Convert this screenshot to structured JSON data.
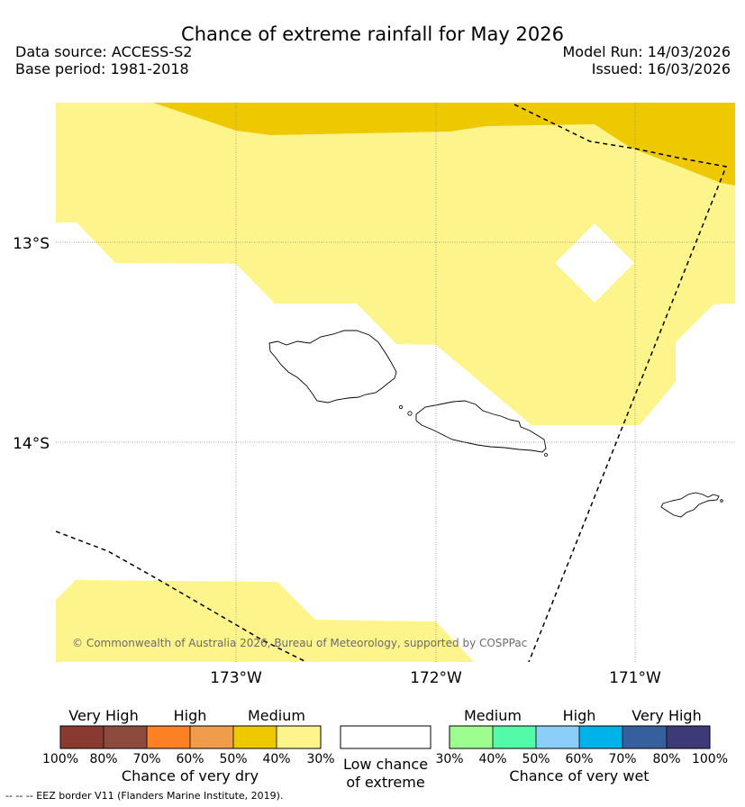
{
  "header": {
    "title": "Chance of extreme rainfall for May 2026",
    "data_source": "Data source: ACCESS-S2",
    "base_period": "Base period: 1981-2018",
    "model_run": "Model Run: 14/03/2026",
    "issued": "Issued: 16/03/2026"
  },
  "map": {
    "lat_labels": [
      "13°S",
      "14°S"
    ],
    "lon_labels": [
      "173°W",
      "172°W",
      "171°W"
    ],
    "copyright": "© Commonwealth of Australia 2026, Bureau of Meteorology, supported by COSPPac",
    "colors": {
      "medium_dry": "#fdf58c",
      "high_dry": "#eec800",
      "low": "#ffffff"
    }
  },
  "legend": {
    "dry": {
      "groups": [
        "Very High",
        "High",
        "Medium"
      ],
      "ticks": [
        "100%",
        "80%",
        "70%",
        "60%",
        "50%",
        "40%",
        "30%"
      ],
      "colors": [
        "#8b3a32",
        "#8c4b3c",
        "#fd8024",
        "#ef9d4b",
        "#eec800",
        "#fdf58c"
      ],
      "caption": "Chance of very dry"
    },
    "low": {
      "caption_line1": "Low chance",
      "caption_line2": "of extreme",
      "color": "#ffffff"
    },
    "wet": {
      "groups": [
        "Medium",
        "High",
        "Very High"
      ],
      "ticks": [
        "30%",
        "40%",
        "50%",
        "60%",
        "70%",
        "80%",
        "100%"
      ],
      "colors": [
        "#9efd8f",
        "#53fba8",
        "#8ccefa",
        "#00b2ea",
        "#36609d",
        "#3e3a77"
      ],
      "caption": "Chance of very wet"
    }
  },
  "footnote": "-- -- -- EEZ border V11 (Flanders Marine Institute, 2019)."
}
